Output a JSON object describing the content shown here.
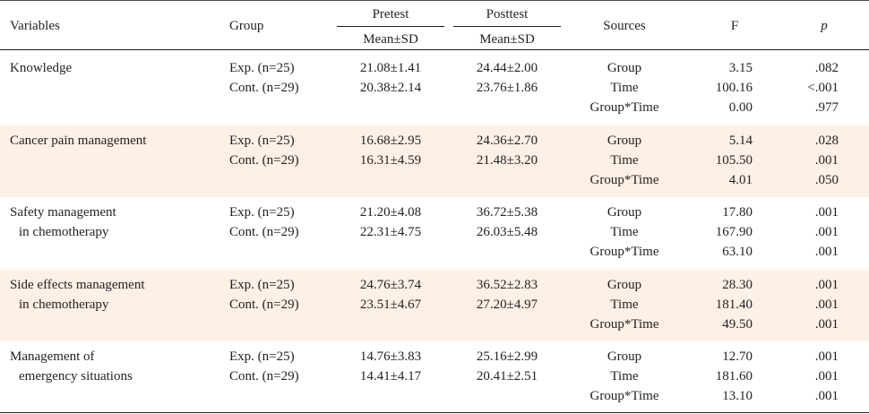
{
  "header": {
    "variables": "Variables",
    "group": "Group",
    "pretest": "Pretest",
    "posttest": "Posttest",
    "pretest_sub": "Mean±SD",
    "posttest_sub": "Mean±SD",
    "sources": "Sources",
    "f": "F",
    "p": "p"
  },
  "rows": [
    {
      "variable_lines": [
        "Knowledge"
      ],
      "groups": [
        "Exp. (n=25)",
        "Cont. (n=29)"
      ],
      "pretest": [
        "21.08±1.41",
        "20.38±2.14"
      ],
      "posttest": [
        "24.44±2.00",
        "23.76±1.86"
      ],
      "sources": [
        "Group",
        "Time",
        "Group*Time"
      ],
      "f": [
        "3.15",
        "100.16",
        "0.00"
      ],
      "p": [
        ".082",
        "<.001",
        ".977"
      ]
    },
    {
      "variable_lines": [
        "Cancer pain management"
      ],
      "groups": [
        "Exp. (n=25)",
        "Cont. (n=29)"
      ],
      "pretest": [
        "16.68±2.95",
        "16.31±4.59"
      ],
      "posttest": [
        "24.36±2.70",
        "21.48±3.20"
      ],
      "sources": [
        "Group",
        "Time",
        "Group*Time"
      ],
      "f": [
        "5.14",
        "105.50",
        "4.01"
      ],
      "p": [
        ".028",
        ".001",
        ".050"
      ]
    },
    {
      "variable_lines": [
        "Safety management",
        "in chemotherapy"
      ],
      "groups": [
        "Exp. (n=25)",
        "Cont. (n=29)"
      ],
      "pretest": [
        "21.20±4.08",
        "22.31±4.75"
      ],
      "posttest": [
        "36.72±5.38",
        "26.03±5.48"
      ],
      "sources": [
        "Group",
        "Time",
        "Group*Time"
      ],
      "f": [
        "17.80",
        "167.90",
        "63.10"
      ],
      "p": [
        ".001",
        ".001",
        ".001"
      ]
    },
    {
      "variable_lines": [
        "Side effects management",
        "in chemotherapy"
      ],
      "groups": [
        "Exp. (n=25)",
        "Cont. (n=29)"
      ],
      "pretest": [
        "24.76±3.74",
        "23.51±4.67"
      ],
      "posttest": [
        "36.52±2.83",
        "27.20±4.97"
      ],
      "sources": [
        "Group",
        "Time",
        "Group*Time"
      ],
      "f": [
        "28.30",
        "181.40",
        "49.50"
      ],
      "p": [
        ".001",
        ".001",
        ".001"
      ]
    },
    {
      "variable_lines": [
        "Management of",
        "emergency situations"
      ],
      "groups": [
        "Exp. (n=25)",
        "Cont. (n=29)"
      ],
      "pretest": [
        "14.76±3.83",
        "14.41±4.17"
      ],
      "posttest": [
        "25.16±2.99",
        "20.41±2.51"
      ],
      "sources": [
        "Group",
        "Time",
        "Group*Time"
      ],
      "f": [
        "12.70",
        "181.60",
        "13.10"
      ],
      "p": [
        ".001",
        ".001",
        ".001"
      ]
    }
  ],
  "colors": {
    "band": "#fdf0e6",
    "text": "#231f20"
  }
}
